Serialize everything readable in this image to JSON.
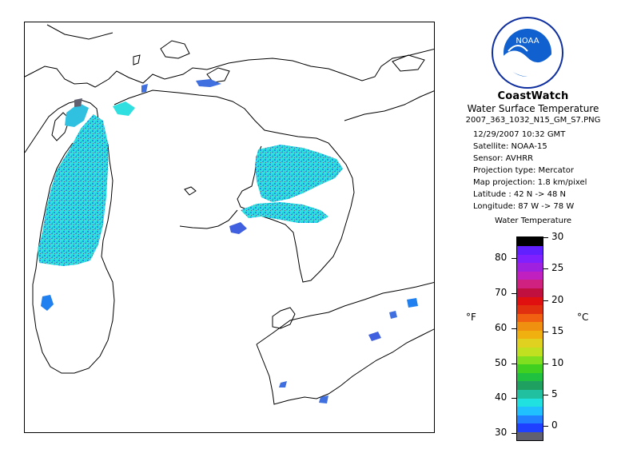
{
  "map": {
    "legend_title": "Water Temperature",
    "unit_left": "°F",
    "unit_right": "°C",
    "fahrenheit_ticks": [
      "30",
      "40",
      "50",
      "60",
      "70",
      "80"
    ],
    "celsius_ticks": [
      "0",
      "5",
      "10",
      "15",
      "20",
      "25",
      "30"
    ],
    "color_scale": [
      "#606070",
      "#2040ff",
      "#2080ff",
      "#20c0ff",
      "#20e0e0",
      "#20c0a0",
      "#20a060",
      "#20c040",
      "#40d020",
      "#80e020",
      "#c0e020",
      "#e0d020",
      "#f0b010",
      "#f09010",
      "#f06010",
      "#e03010",
      "#e01010",
      "#c01040",
      "#d02080",
      "#c020c0",
      "#a020e0",
      "#8020ff",
      "#6020ff",
      "#000000"
    ],
    "logo_text": "NOAA",
    "colors": {
      "coastline": "#000000",
      "ice_frame": "#000000"
    }
  },
  "header": {
    "title": "CoastWatch",
    "subtitle": "Water Surface Temperature",
    "filename": "2007_363_1032_N15_GM_S7.PNG"
  },
  "info": {
    "datetime": "12/29/2007    10:32 GMT",
    "satellite": "Satellite: NOAA-15",
    "sensor": "Sensor: AVHRR",
    "projection_type": "Projection type:  Mercator",
    "map_projection": "Map projection: 1.8 km/pixel",
    "latitude": "Latitude : 42 N -> 48 N",
    "longitude": "Longitude: 87 W -> 78 W"
  }
}
